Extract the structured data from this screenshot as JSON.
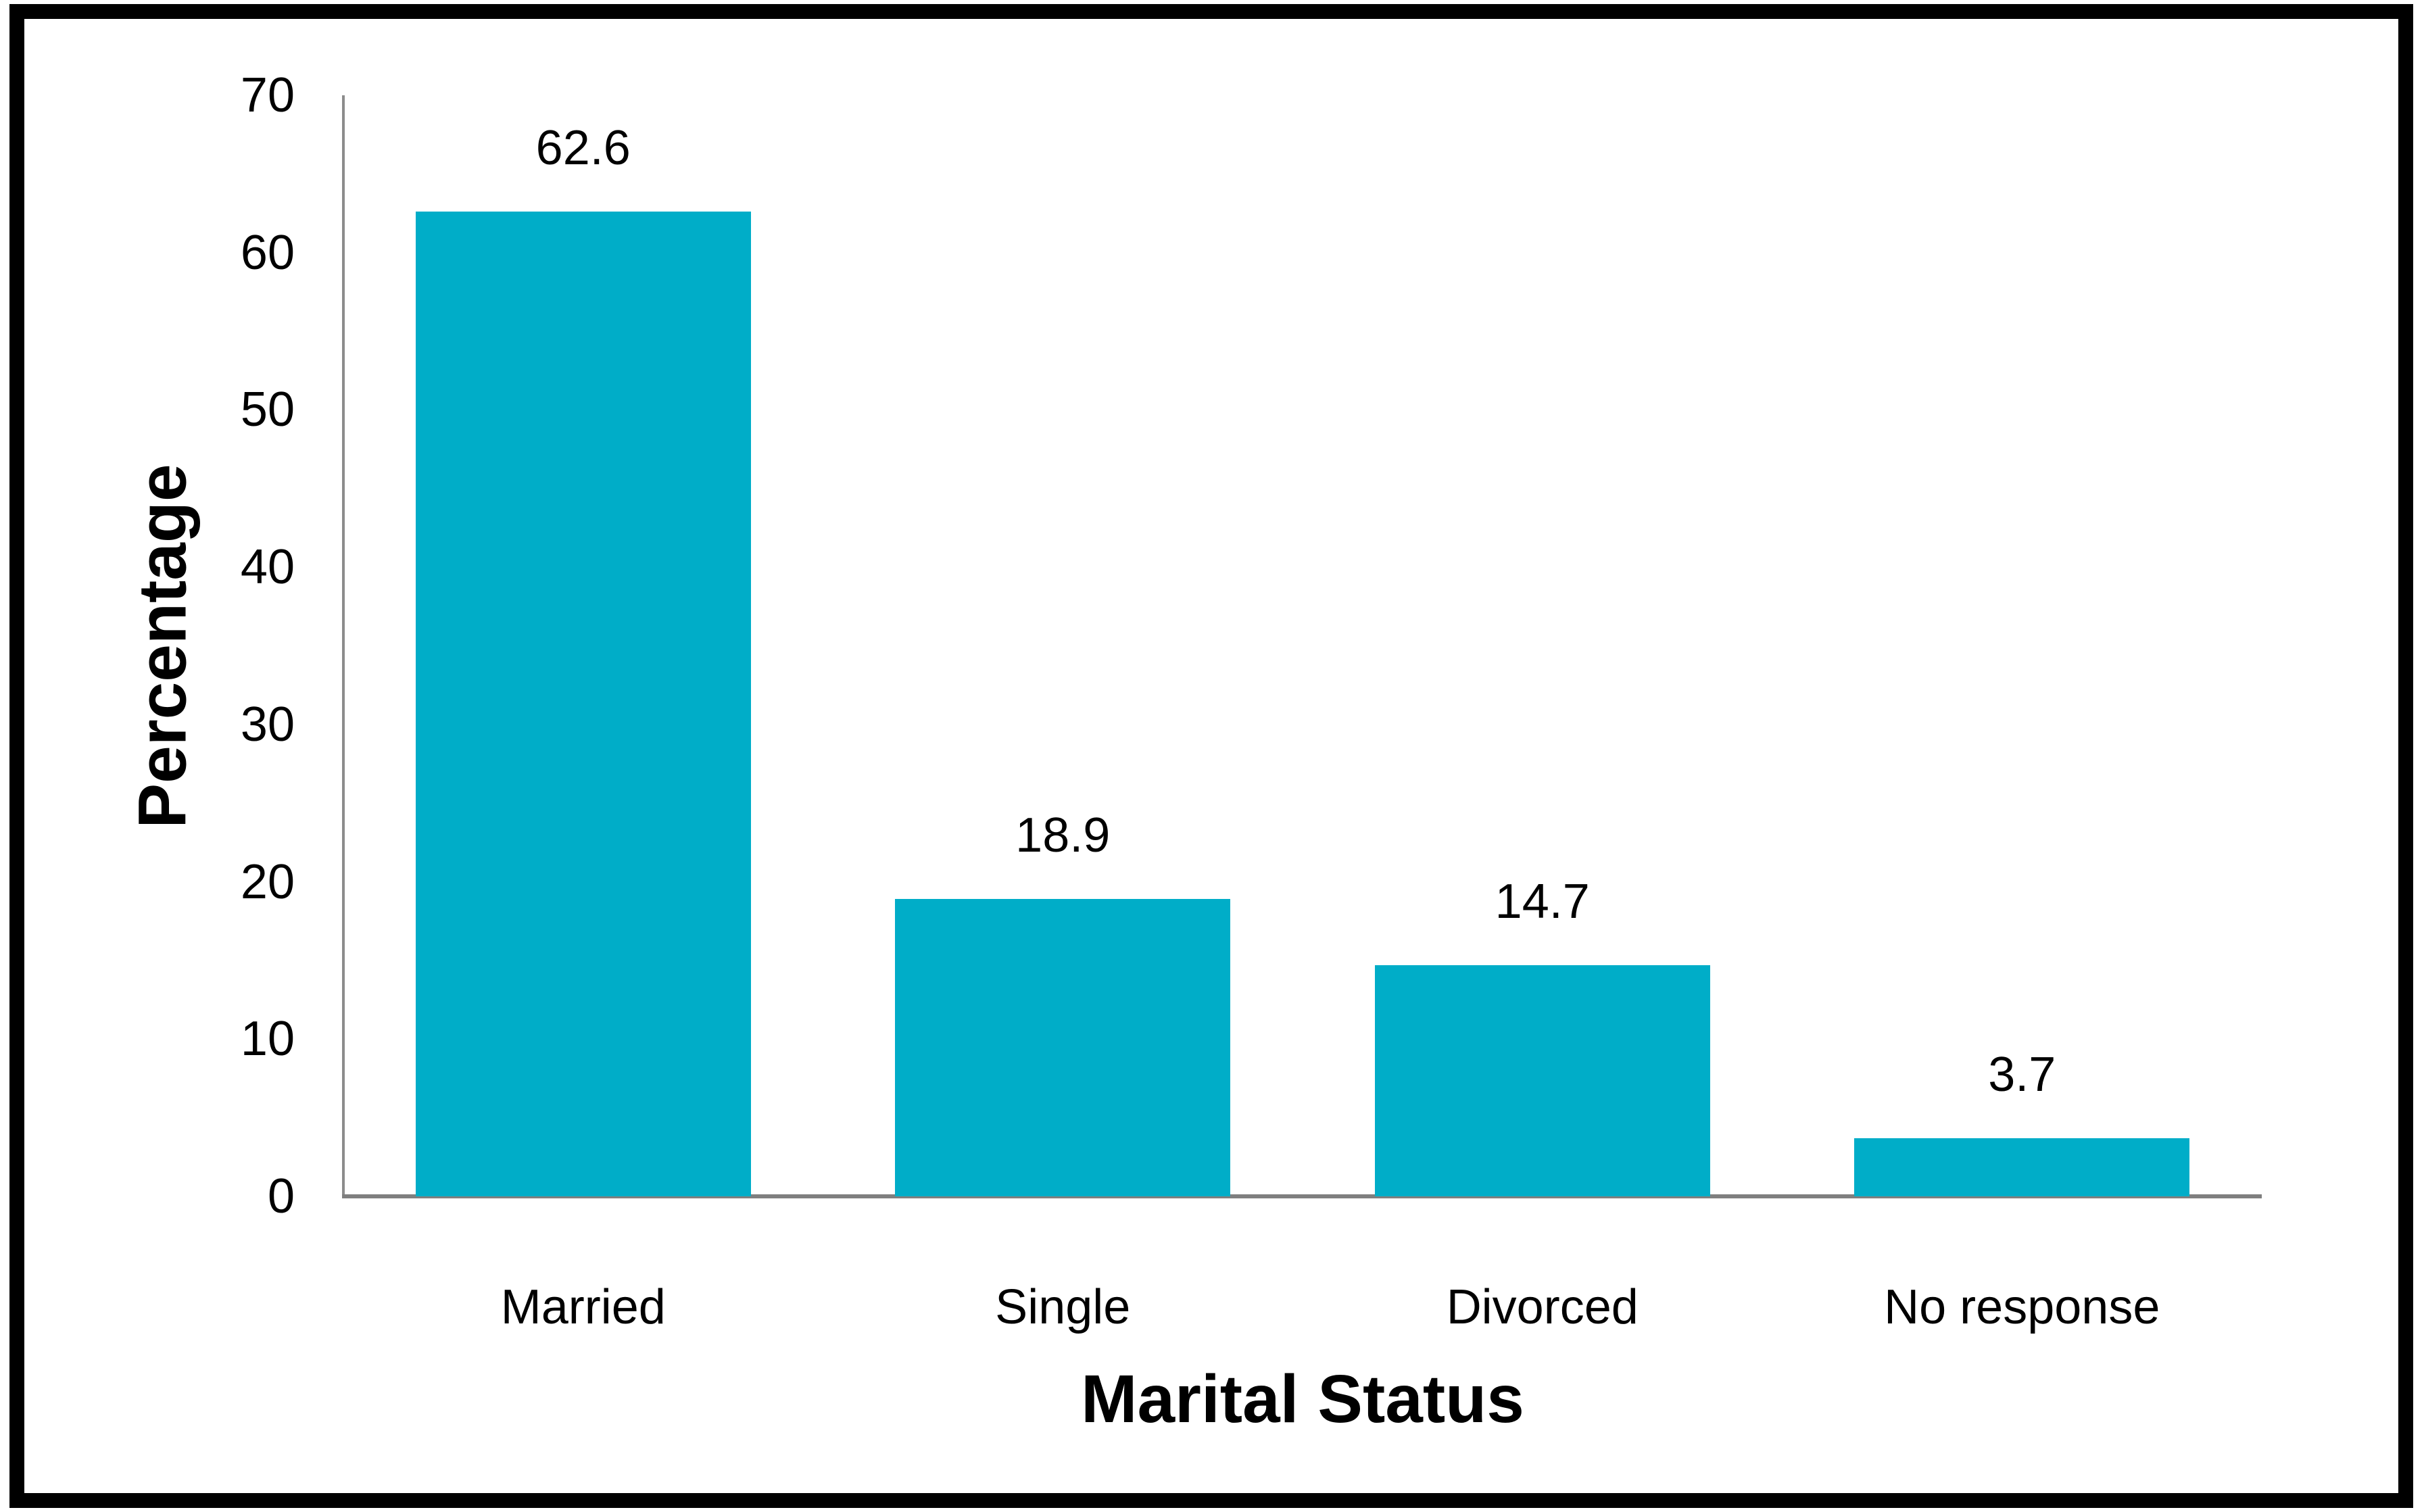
{
  "chart_data": {
    "type": "bar",
    "title": "",
    "categories": [
      "Married",
      "Single",
      "Divorced",
      "No response"
    ],
    "values": [
      62.6,
      18.9,
      14.7,
      3.7
    ],
    "value_labels": [
      "62.6",
      "18.9",
      "14.7",
      "3.7"
    ],
    "xlabel": "Marital Status",
    "ylabel": "Percentage",
    "ylim": [
      0,
      70
    ],
    "ytick_step": 10,
    "ytick_labels": [
      "0",
      "10",
      "20",
      "30",
      "40",
      "50",
      "60",
      "70"
    ],
    "grid": "off",
    "legend": "none",
    "bar_color": "#00ADC8",
    "y_axis_color": "#8C8C8C",
    "x_axis_color": "#7F7F7F",
    "text_color": "#000000",
    "frame_color": "#000000",
    "background": "#FFFFFF"
  }
}
